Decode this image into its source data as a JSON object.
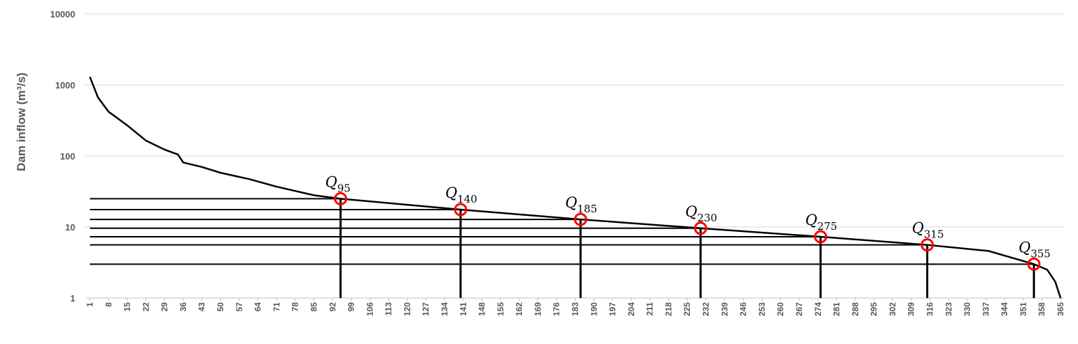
{
  "chart_data": {
    "type": "line",
    "y_label": "Dam inflow (m³/s)",
    "log_y": true,
    "grid": true,
    "ylim": [
      1,
      10000
    ],
    "yticks": [
      1,
      10,
      100,
      1000,
      10000
    ],
    "xlim": [
      1,
      365
    ],
    "xticks": [
      1,
      8,
      15,
      22,
      29,
      36,
      43,
      50,
      57,
      64,
      71,
      78,
      85,
      92,
      99,
      106,
      113,
      120,
      127,
      134,
      141,
      148,
      155,
      162,
      169,
      176,
      183,
      190,
      197,
      204,
      211,
      218,
      225,
      232,
      239,
      246,
      253,
      260,
      267,
      274,
      281,
      288,
      295,
      302,
      309,
      316,
      323,
      330,
      337,
      344,
      351,
      358,
      365
    ],
    "series": [
      {
        "color": "#000000",
        "x": [
          1,
          4,
          8,
          15,
          22,
          29,
          34,
          36,
          43,
          50,
          61,
          71,
          85,
          95,
          140,
          185,
          230,
          275,
          315,
          338,
          355,
          360,
          363,
          365
        ],
        "values": [
          1300,
          670,
          420,
          270,
          165,
          123,
          105,
          81,
          70,
          58,
          47,
          37,
          28,
          25,
          17.6,
          12.8,
          9.6,
          7.3,
          5.6,
          4.6,
          3.0,
          2.5,
          1.7,
          1.0
        ]
      }
    ],
    "markers": [
      {
        "x": 95,
        "value": 25,
        "symbol": "Q",
        "subscript": "95"
      },
      {
        "x": 140,
        "value": 17.6,
        "symbol": "Q",
        "subscript": "140"
      },
      {
        "x": 185,
        "value": 12.8,
        "symbol": "Q",
        "subscript": "185"
      },
      {
        "x": 230,
        "value": 9.6,
        "symbol": "Q",
        "subscript": "230"
      },
      {
        "x": 275,
        "value": 7.3,
        "symbol": "Q",
        "subscript": "275"
      },
      {
        "x": 315,
        "value": 5.6,
        "symbol": "Q",
        "subscript": "315"
      },
      {
        "x": 355,
        "value": 3.0,
        "symbol": "Q",
        "subscript": "355"
      }
    ],
    "marker_color": "#ff0000"
  }
}
